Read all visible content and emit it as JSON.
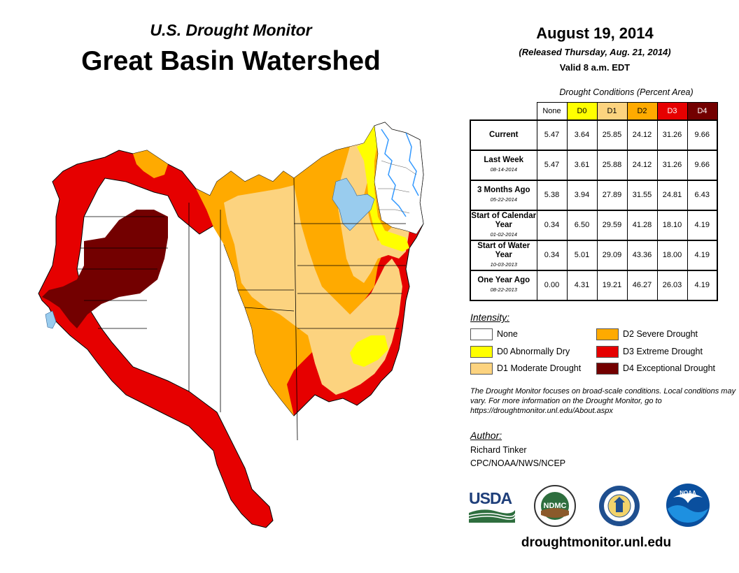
{
  "header": {
    "subtitle": "U.S. Drought Monitor",
    "title": "Great Basin Watershed",
    "date": "August 19, 2014",
    "released": "(Released Thursday, Aug. 21, 2014)",
    "valid": "Valid 8 a.m. EDT"
  },
  "table": {
    "caption": "Drought Conditions (Percent Area)",
    "columns": [
      "None",
      "D0",
      "D1",
      "D2",
      "D3",
      "D4"
    ],
    "column_colors": [
      "#ffffff",
      "#ffff00",
      "#fcd37f",
      "#ffaa00",
      "#e60000",
      "#730000"
    ],
    "rows": [
      {
        "label": "Current",
        "sublabel": "",
        "values": [
          "5.47",
          "3.64",
          "25.85",
          "24.12",
          "31.26",
          "9.66"
        ]
      },
      {
        "label": "Last Week",
        "sublabel": "08-14-2014",
        "values": [
          "5.47",
          "3.61",
          "25.88",
          "24.12",
          "31.26",
          "9.66"
        ]
      },
      {
        "label": "3 Months Ago",
        "sublabel": "05-22-2014",
        "values": [
          "5.38",
          "3.94",
          "27.89",
          "31.55",
          "24.81",
          "6.43"
        ]
      },
      {
        "label": "Start of Calendar Year",
        "sublabel": "01-02-2014",
        "values": [
          "0.34",
          "6.50",
          "29.59",
          "41.28",
          "18.10",
          "4.19"
        ]
      },
      {
        "label": "Start of Water Year",
        "sublabel": "10-03-2013",
        "values": [
          "0.34",
          "5.01",
          "29.09",
          "43.36",
          "18.00",
          "4.19"
        ]
      },
      {
        "label": "One Year Ago",
        "sublabel": "08-22-2013",
        "values": [
          "0.00",
          "4.31",
          "19.21",
          "46.27",
          "26.03",
          "4.19"
        ]
      }
    ]
  },
  "legend": {
    "title": "Intensity:",
    "items": [
      {
        "label": "None",
        "color": "#ffffff"
      },
      {
        "label": "D0 Abnormally Dry",
        "color": "#ffff00"
      },
      {
        "label": "D1 Moderate Drought",
        "color": "#fcd37f"
      },
      {
        "label": "D2 Severe Drought",
        "color": "#ffaa00"
      },
      {
        "label": "D3 Extreme Drought",
        "color": "#e60000"
      },
      {
        "label": "D4 Exceptional Drought",
        "color": "#730000"
      }
    ]
  },
  "note": "The Drought Monitor focuses on broad-scale conditions. Local conditions may vary. For more information on the Drought Monitor, go to https://droughtmonitor.unl.edu/About.aspx",
  "author": {
    "label": "Author:",
    "name": "Richard Tinker",
    "org": "CPC/NOAA/NWS/NCEP"
  },
  "logos": {
    "usda": "USDA",
    "ndmc": "NDMC",
    "noaa": "NOAA"
  },
  "website": "droughtmonitor.unl.edu",
  "map_colors": {
    "water": "#99ccee",
    "border": "#000000",
    "river": "#3399ff"
  }
}
